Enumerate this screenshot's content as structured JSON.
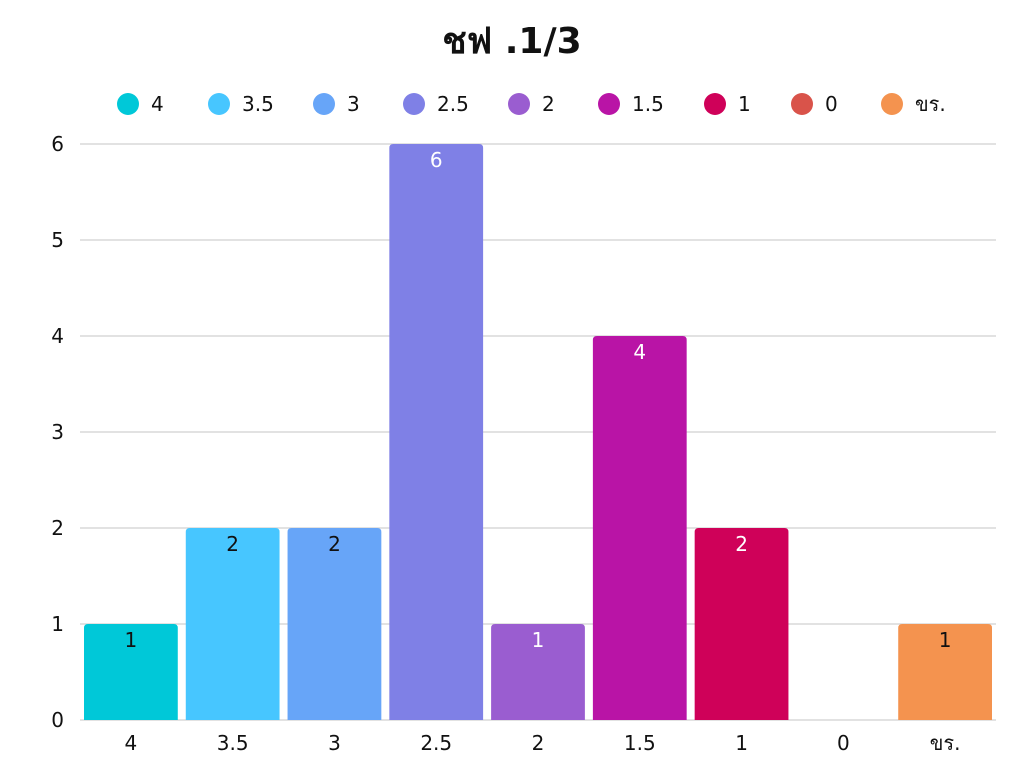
{
  "chart_data": {
    "type": "bar",
    "title": "ชฟ .1/3",
    "xlabel": "",
    "ylabel": "",
    "categories": [
      "4",
      "3.5",
      "3",
      "2.5",
      "2",
      "1.5",
      "1",
      "0",
      "ขร."
    ],
    "values": [
      1,
      2,
      2,
      6,
      1,
      4,
      2,
      0,
      1
    ],
    "colors": [
      "#00C8D8",
      "#47C6FF",
      "#67A5F8",
      "#7F80E6",
      "#9A5DD0",
      "#B914A6",
      "#CF0159",
      "#D9534A",
      "#F4934F"
    ],
    "value_label_colors": [
      "#111111",
      "#111111",
      "#111111",
      "#ffffff",
      "#ffffff",
      "#ffffff",
      "#ffffff",
      "#ffffff",
      "#111111"
    ],
    "ylim": [
      0,
      6
    ],
    "yticks": [
      0,
      1,
      2,
      3,
      4,
      5,
      6
    ],
    "grid": true,
    "legend": "top"
  }
}
